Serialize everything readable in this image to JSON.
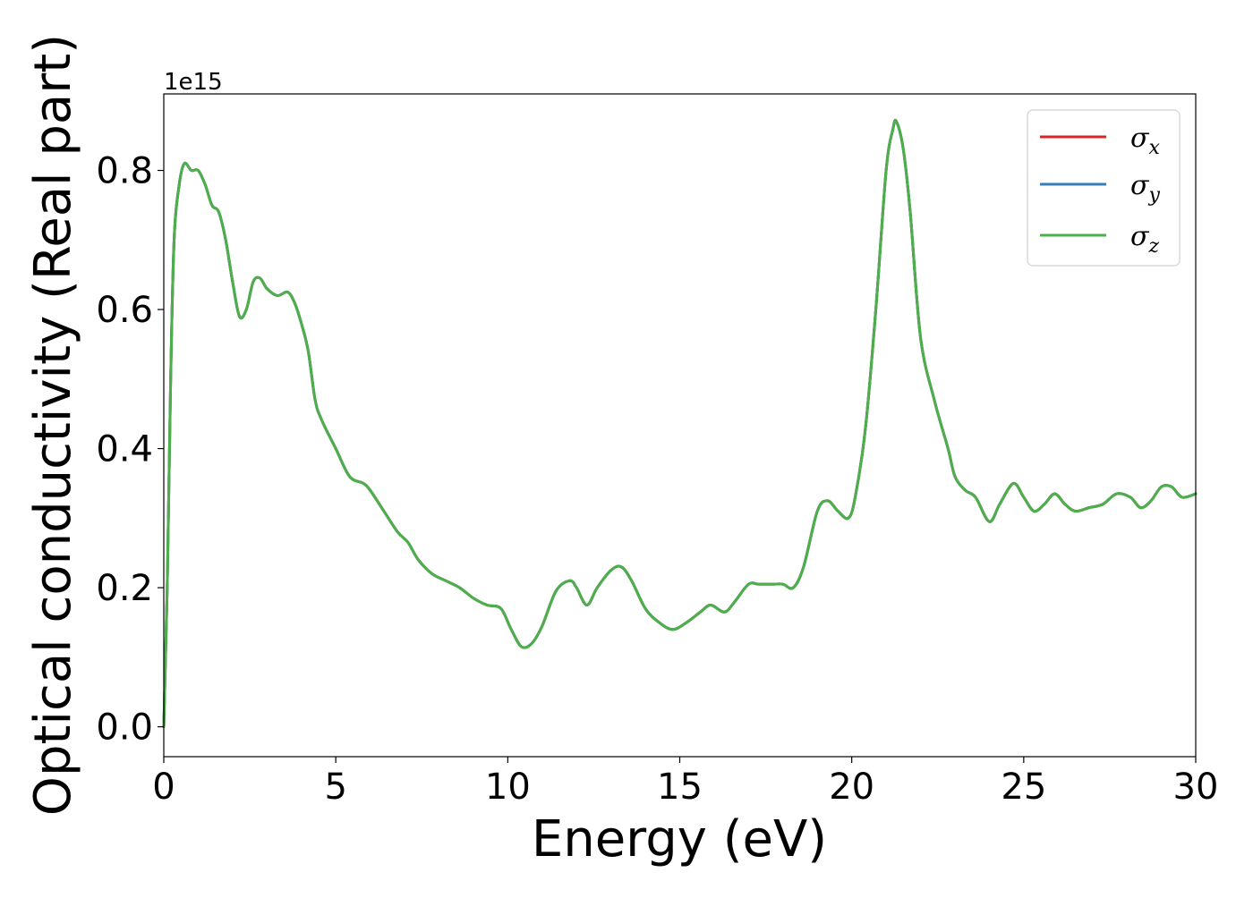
{
  "chart_data": {
    "type": "line",
    "title": "",
    "xlabel": "Energy (eV)",
    "ylabel": "Optical conductivity (Real part)",
    "y_offset_text": "1e15",
    "y_multiplier": 1000000000000000.0,
    "xlim": [
      0,
      30
    ],
    "ylim": [
      -0.043,
      0.91
    ],
    "xticks": [
      0,
      5,
      10,
      15,
      20,
      25,
      30
    ],
    "xtick_labels": [
      "0",
      "5",
      "10",
      "15",
      "20",
      "25",
      "30"
    ],
    "yticks": [
      0.0,
      0.2,
      0.4,
      0.6,
      0.8
    ],
    "ytick_labels": [
      "0.0",
      "0.2",
      "0.4",
      "0.6",
      "0.8"
    ],
    "grid": false,
    "legend_position": "top-right",
    "x": [
      0.0,
      0.1,
      0.2,
      0.3,
      0.45,
      0.6,
      0.8,
      1.0,
      1.2,
      1.4,
      1.6,
      1.8,
      2.0,
      2.2,
      2.4,
      2.6,
      2.8,
      3.0,
      3.3,
      3.6,
      3.8,
      4.0,
      4.2,
      4.4,
      4.6,
      5.0,
      5.4,
      5.8,
      6.0,
      6.4,
      6.8,
      7.1,
      7.4,
      7.8,
      8.2,
      8.6,
      9.0,
      9.4,
      9.8,
      10.1,
      10.4,
      10.7,
      11.0,
      11.4,
      11.8,
      12.0,
      12.3,
      12.6,
      13.0,
      13.3,
      13.6,
      14.0,
      14.4,
      14.8,
      15.2,
      15.6,
      15.9,
      16.3,
      16.6,
      17.0,
      17.3,
      17.7,
      18.0,
      18.3,
      18.6,
      19.0,
      19.3,
      19.6,
      19.9,
      20.1,
      20.4,
      20.7,
      21.0,
      21.2,
      21.3,
      21.5,
      21.7,
      22.0,
      22.4,
      22.8,
      23.0,
      23.3,
      23.6,
      24.0,
      24.3,
      24.7,
      25.0,
      25.3,
      25.6,
      25.9,
      26.2,
      26.5,
      26.9,
      27.3,
      27.7,
      28.1,
      28.4,
      28.7,
      29.0,
      29.3,
      29.6,
      30.0
    ],
    "series": [
      {
        "name": "σx",
        "legend_symbol": "σ",
        "legend_subscript": "x",
        "color": "#d62728",
        "values": [
          0.0,
          0.2,
          0.5,
          0.7,
          0.78,
          0.81,
          0.8,
          0.8,
          0.78,
          0.75,
          0.74,
          0.7,
          0.64,
          0.59,
          0.6,
          0.64,
          0.645,
          0.63,
          0.62,
          0.625,
          0.61,
          0.58,
          0.54,
          0.47,
          0.44,
          0.4,
          0.36,
          0.35,
          0.34,
          0.31,
          0.28,
          0.265,
          0.24,
          0.22,
          0.21,
          0.2,
          0.185,
          0.175,
          0.17,
          0.14,
          0.115,
          0.12,
          0.145,
          0.195,
          0.21,
          0.2,
          0.175,
          0.2,
          0.225,
          0.23,
          0.21,
          0.17,
          0.15,
          0.14,
          0.15,
          0.165,
          0.175,
          0.165,
          0.18,
          0.205,
          0.205,
          0.205,
          0.205,
          0.2,
          0.23,
          0.31,
          0.325,
          0.31,
          0.3,
          0.33,
          0.43,
          0.6,
          0.8,
          0.86,
          0.87,
          0.83,
          0.74,
          0.56,
          0.47,
          0.4,
          0.36,
          0.34,
          0.33,
          0.295,
          0.32,
          0.35,
          0.33,
          0.31,
          0.32,
          0.335,
          0.32,
          0.31,
          0.315,
          0.32,
          0.335,
          0.33,
          0.315,
          0.325,
          0.345,
          0.345,
          0.33,
          0.335
        ]
      },
      {
        "name": "σy",
        "legend_symbol": "σ",
        "legend_subscript": "y",
        "color": "#377eb8",
        "values": [
          0.0,
          0.2,
          0.5,
          0.7,
          0.78,
          0.81,
          0.8,
          0.8,
          0.78,
          0.75,
          0.74,
          0.7,
          0.64,
          0.59,
          0.6,
          0.64,
          0.645,
          0.63,
          0.62,
          0.625,
          0.61,
          0.58,
          0.54,
          0.47,
          0.44,
          0.4,
          0.36,
          0.35,
          0.34,
          0.31,
          0.28,
          0.265,
          0.24,
          0.22,
          0.21,
          0.2,
          0.185,
          0.175,
          0.17,
          0.14,
          0.115,
          0.12,
          0.145,
          0.195,
          0.21,
          0.2,
          0.175,
          0.2,
          0.225,
          0.23,
          0.21,
          0.17,
          0.15,
          0.14,
          0.15,
          0.165,
          0.175,
          0.165,
          0.18,
          0.205,
          0.205,
          0.205,
          0.205,
          0.2,
          0.23,
          0.31,
          0.325,
          0.31,
          0.3,
          0.33,
          0.43,
          0.6,
          0.8,
          0.86,
          0.87,
          0.83,
          0.74,
          0.56,
          0.47,
          0.4,
          0.36,
          0.34,
          0.33,
          0.295,
          0.32,
          0.35,
          0.33,
          0.31,
          0.32,
          0.335,
          0.32,
          0.31,
          0.315,
          0.32,
          0.335,
          0.33,
          0.315,
          0.325,
          0.345,
          0.345,
          0.33,
          0.335
        ]
      },
      {
        "name": "σz",
        "legend_symbol": "σ",
        "legend_subscript": "z",
        "color": "#4daf4a",
        "values": [
          0.0,
          0.2,
          0.5,
          0.7,
          0.78,
          0.81,
          0.8,
          0.8,
          0.78,
          0.75,
          0.74,
          0.7,
          0.64,
          0.59,
          0.6,
          0.64,
          0.645,
          0.63,
          0.62,
          0.625,
          0.61,
          0.58,
          0.54,
          0.47,
          0.44,
          0.4,
          0.36,
          0.35,
          0.34,
          0.31,
          0.28,
          0.265,
          0.24,
          0.22,
          0.21,
          0.2,
          0.185,
          0.175,
          0.17,
          0.14,
          0.115,
          0.12,
          0.145,
          0.195,
          0.21,
          0.2,
          0.175,
          0.2,
          0.225,
          0.23,
          0.21,
          0.17,
          0.15,
          0.14,
          0.15,
          0.165,
          0.175,
          0.165,
          0.18,
          0.205,
          0.205,
          0.205,
          0.205,
          0.2,
          0.23,
          0.31,
          0.325,
          0.31,
          0.3,
          0.33,
          0.43,
          0.6,
          0.8,
          0.86,
          0.87,
          0.83,
          0.74,
          0.56,
          0.47,
          0.4,
          0.36,
          0.34,
          0.33,
          0.295,
          0.32,
          0.35,
          0.33,
          0.31,
          0.32,
          0.335,
          0.32,
          0.31,
          0.315,
          0.32,
          0.335,
          0.33,
          0.315,
          0.325,
          0.345,
          0.345,
          0.33,
          0.335
        ]
      }
    ]
  }
}
